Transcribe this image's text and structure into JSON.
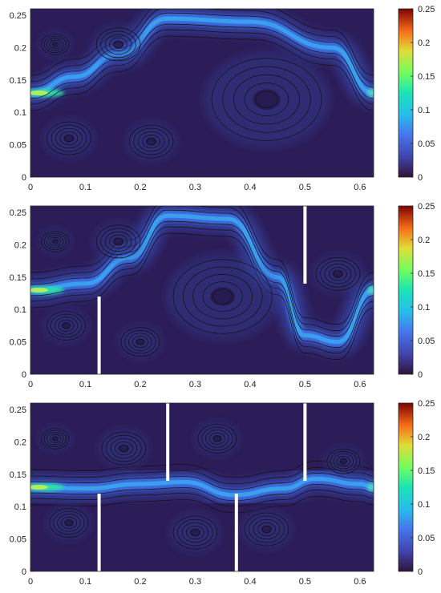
{
  "chart_data": [
    {
      "type": "heatmap",
      "title": "",
      "xlabel": "",
      "ylabel": "",
      "xlim": [
        0,
        0.625
      ],
      "ylim": [
        0,
        0.26
      ],
      "xticks": [
        "0",
        "0.1",
        "0.2",
        "0.3",
        "0.4",
        "0.5",
        "0.6"
      ],
      "yticks": [
        "0",
        "0.05",
        "0.1",
        "0.15",
        "0.2",
        "0.25"
      ],
      "colorbar": {
        "range": [
          0,
          0.25
        ],
        "ticks": [
          "0",
          "0.05",
          "0.1",
          "0.15",
          "0.2",
          "0.25"
        ]
      },
      "inlet": {
        "x": 0,
        "y": 0.13
      },
      "outlet": {
        "x": 0.625,
        "y": 0.13
      },
      "jet_path": [
        [
          0,
          0.13
        ],
        [
          0.08,
          0.155
        ],
        [
          0.16,
          0.19
        ],
        [
          0.25,
          0.245
        ],
        [
          0.4,
          0.24
        ],
        [
          0.55,
          0.2
        ],
        [
          0.625,
          0.13
        ]
      ],
      "vortices": [
        {
          "x": 0.045,
          "y": 0.205,
          "r": 0.025
        },
        {
          "x": 0.16,
          "y": 0.205,
          "r": 0.04
        },
        {
          "x": 0.43,
          "y": 0.12,
          "r": 0.1
        },
        {
          "x": 0.22,
          "y": 0.055,
          "r": 0.04
        },
        {
          "x": 0.07,
          "y": 0.06,
          "r": 0.04
        }
      ],
      "baffles": []
    },
    {
      "type": "heatmap",
      "title": "",
      "xlabel": "",
      "ylabel": "",
      "xlim": [
        0,
        0.625
      ],
      "ylim": [
        0,
        0.26
      ],
      "xticks": [
        "0",
        "0.1",
        "0.2",
        "0.3",
        "0.4",
        "0.5",
        "0.6"
      ],
      "yticks": [
        "0",
        "0.05",
        "0.1",
        "0.15",
        "0.2",
        "0.25"
      ],
      "colorbar": {
        "range": [
          0,
          0.25
        ],
        "ticks": [
          "0",
          "0.05",
          "0.1",
          "0.15",
          "0.2",
          "0.25"
        ]
      },
      "inlet": {
        "x": 0,
        "y": 0.13
      },
      "outlet": {
        "x": 0.625,
        "y": 0.13
      },
      "jet_path": [
        [
          0,
          0.13
        ],
        [
          0.1,
          0.14
        ],
        [
          0.18,
          0.18
        ],
        [
          0.25,
          0.245
        ],
        [
          0.36,
          0.24
        ],
        [
          0.45,
          0.15
        ],
        [
          0.5,
          0.06
        ],
        [
          0.56,
          0.05
        ],
        [
          0.625,
          0.13
        ]
      ],
      "vortices": [
        {
          "x": 0.045,
          "y": 0.205,
          "r": 0.025
        },
        {
          "x": 0.16,
          "y": 0.205,
          "r": 0.04
        },
        {
          "x": 0.35,
          "y": 0.12,
          "r": 0.09
        },
        {
          "x": 0.065,
          "y": 0.075,
          "r": 0.035
        },
        {
          "x": 0.2,
          "y": 0.05,
          "r": 0.035
        },
        {
          "x": 0.56,
          "y": 0.155,
          "r": 0.04
        }
      ],
      "baffles": [
        {
          "x": 0.125,
          "from": 0,
          "to": 0.12
        },
        {
          "x": 0.5,
          "from": 0.14,
          "to": 0.26
        }
      ]
    },
    {
      "type": "heatmap",
      "title": "",
      "xlabel": "",
      "ylabel": "",
      "xlim": [
        0,
        0.625
      ],
      "ylim": [
        0,
        0.26
      ],
      "xticks": [
        "0",
        "0.1",
        "0.2",
        "0.3",
        "0.4",
        "0.5",
        "0.6"
      ],
      "yticks": [
        "0",
        "0.05",
        "0.1",
        "0.15",
        "0.2",
        "0.25"
      ],
      "colorbar": {
        "range": [
          0,
          0.25
        ],
        "ticks": [
          "0",
          "0.05",
          "0.1",
          "0.15",
          "0.2",
          "0.25"
        ]
      },
      "inlet": {
        "x": 0,
        "y": 0.13
      },
      "outlet": {
        "x": 0.625,
        "y": 0.13
      },
      "jet_path": [
        [
          0,
          0.13
        ],
        [
          0.1,
          0.128
        ],
        [
          0.2,
          0.135
        ],
        [
          0.28,
          0.138
        ],
        [
          0.37,
          0.118
        ],
        [
          0.46,
          0.128
        ],
        [
          0.52,
          0.143
        ],
        [
          0.6,
          0.135
        ],
        [
          0.625,
          0.13
        ]
      ],
      "vortices": [
        {
          "x": 0.045,
          "y": 0.205,
          "r": 0.025
        },
        {
          "x": 0.17,
          "y": 0.19,
          "r": 0.04
        },
        {
          "x": 0.07,
          "y": 0.075,
          "r": 0.035
        },
        {
          "x": 0.3,
          "y": 0.06,
          "r": 0.04
        },
        {
          "x": 0.43,
          "y": 0.065,
          "r": 0.04
        },
        {
          "x": 0.34,
          "y": 0.205,
          "r": 0.035
        },
        {
          "x": 0.57,
          "y": 0.17,
          "r": 0.03
        }
      ],
      "baffles": [
        {
          "x": 0.125,
          "from": 0,
          "to": 0.12
        },
        {
          "x": 0.25,
          "from": 0.14,
          "to": 0.26
        },
        {
          "x": 0.375,
          "from": 0,
          "to": 0.12
        },
        {
          "x": 0.5,
          "from": 0.14,
          "to": 0.26
        }
      ]
    }
  ]
}
